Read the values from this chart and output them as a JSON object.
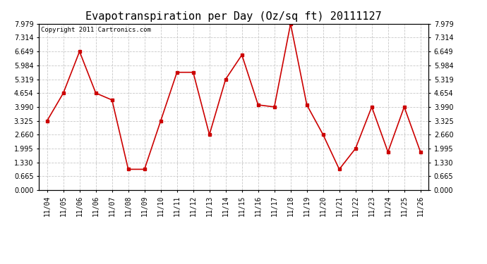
{
  "title": "Evapotranspiration per Day (Oz/sq ft) 20111127",
  "copyright": "Copyright 2011 Cartronics.com",
  "x_labels": [
    "11/04",
    "11/05",
    "11/06",
    "11/06",
    "11/07",
    "11/08",
    "11/09",
    "11/10",
    "11/11",
    "11/12",
    "11/13",
    "11/14",
    "11/15",
    "11/16",
    "11/17",
    "11/18",
    "11/19",
    "11/20",
    "11/21",
    "11/22",
    "11/23",
    "11/24",
    "11/25",
    "11/26"
  ],
  "values": [
    3.325,
    4.654,
    6.649,
    4.654,
    4.322,
    0.998,
    0.998,
    3.325,
    5.65,
    5.65,
    2.66,
    5.319,
    6.484,
    4.087,
    3.99,
    7.979,
    4.087,
    2.66,
    0.998,
    1.995,
    3.99,
    1.83,
    3.99,
    1.83
  ],
  "y_ticks": [
    0.0,
    0.665,
    1.33,
    1.995,
    2.66,
    3.325,
    3.99,
    4.654,
    5.319,
    5.984,
    6.649,
    7.314,
    7.979
  ],
  "ylim": [
    0.0,
    7.979
  ],
  "line_color": "#cc0000",
  "marker_size": 3,
  "background_color": "#ffffff",
  "grid_color": "#c8c8c8",
  "title_fontsize": 11,
  "tick_fontsize": 7,
  "copyright_fontsize": 6.5
}
